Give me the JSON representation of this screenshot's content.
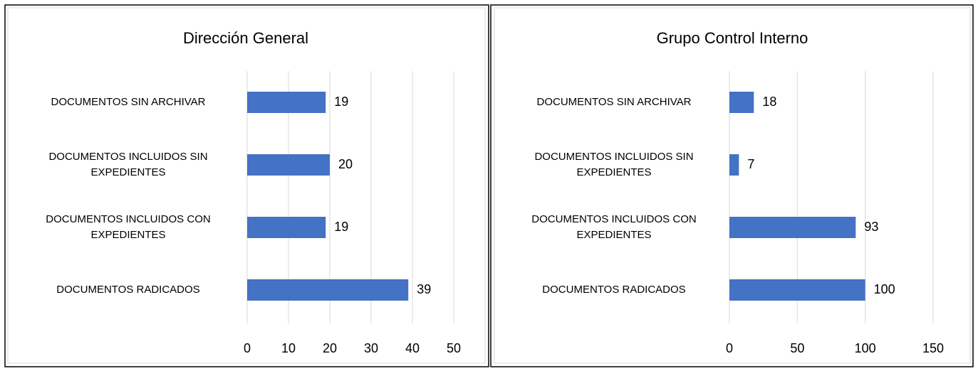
{
  "chart_data": [
    {
      "type": "bar",
      "orientation": "horizontal",
      "title": "Dirección General",
      "categories": [
        "DOCUMENTOS SIN ARCHIVAR",
        "DOCUMENTOS INCLUIDOS SIN EXPEDIENTES",
        "DOCUMENTOS INCLUIDOS CON EXPEDIENTES",
        "DOCUMENTOS RADICADOS"
      ],
      "values": [
        19,
        20,
        19,
        39
      ],
      "color": "#4472c4",
      "xlim": [
        0,
        50
      ],
      "xticks": [
        0,
        10,
        20,
        30,
        40,
        50
      ],
      "grid": true
    },
    {
      "type": "bar",
      "orientation": "horizontal",
      "title": "Grupo Control Interno",
      "categories": [
        "DOCUMENTOS SIN ARCHIVAR",
        "DOCUMENTOS INCLUIDOS SIN EXPEDIENTES",
        "DOCUMENTOS INCLUIDOS CON EXPEDIENTES",
        "DOCUMENTOS RADICADOS"
      ],
      "values": [
        18,
        7,
        93,
        100
      ],
      "color": "#4472c4",
      "xlim": [
        0,
        150
      ],
      "xticks": [
        0,
        50,
        100,
        150
      ],
      "grid": true
    }
  ]
}
